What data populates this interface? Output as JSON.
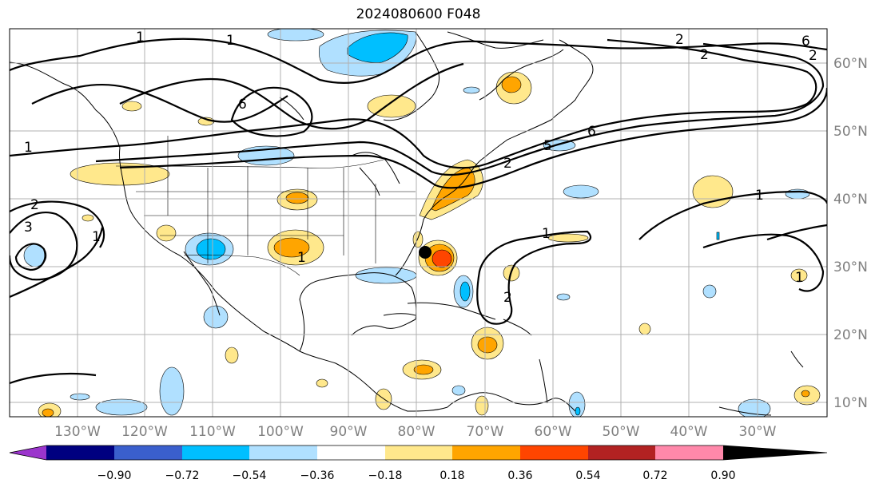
{
  "title": "2024080600 F048",
  "lon_ticks": [
    "130°W",
    "120°W",
    "110°W",
    "100°W",
    "90°W",
    "80°W",
    "70°W",
    "60°W",
    "50°W",
    "40°W",
    "30°W"
  ],
  "lat_ticks": [
    "60°N",
    "50°N",
    "40°N",
    "30°N",
    "20°N",
    "10°N"
  ],
  "colorbar": {
    "ticks": [
      "−0.90",
      "−0.72",
      "−0.54",
      "−0.36",
      "−0.18",
      "0.18",
      "0.36",
      "0.54",
      "0.72",
      "0.90"
    ],
    "colors": [
      "#9b35cc",
      "#000080",
      "#3a5fcd",
      "#00bfff",
      "#b0e0ff",
      "#ffffff",
      "#ffe88c",
      "#ffa500",
      "#ff4500",
      "#b22222",
      "#ff88aa"
    ]
  },
  "contour_labels": [
    "1",
    "1",
    "2",
    "6",
    "2",
    "1",
    "6",
    "2",
    "1",
    "1",
    "2",
    "3",
    "1",
    "1",
    "2",
    "1",
    "6",
    "5",
    "2"
  ],
  "marker": {
    "name": "storm-center",
    "lon": "81°W",
    "lat": "32°N"
  }
}
